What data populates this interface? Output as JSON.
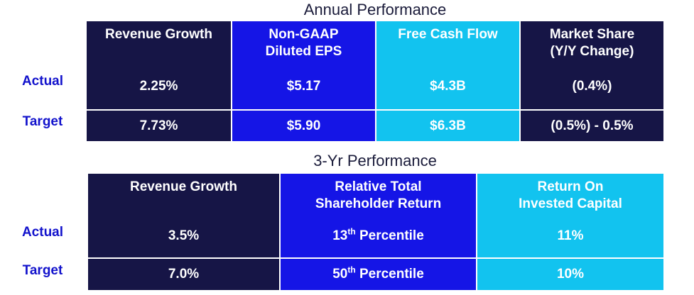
{
  "annual": {
    "title": "Annual Performance",
    "row_labels": {
      "actual": "Actual",
      "target": "Target"
    },
    "columns": [
      {
        "header": "Revenue Growth",
        "actual": "2.25%",
        "target": "7.73%",
        "color": "#161546"
      },
      {
        "header": "Non-GAAP\nDiluted EPS",
        "actual": "$5.17",
        "target": "$5.90",
        "color": "#1515e6"
      },
      {
        "header": "Free Cash Flow",
        "actual": "$4.3B",
        "target": "$6.3B",
        "color": "#12c3ef"
      },
      {
        "header": "Market Share\n(Y/Y Change)",
        "actual": "(0.4%)",
        "target": "(0.5%) - 0.5%",
        "color": "#161546"
      }
    ]
  },
  "three_year": {
    "title": "3-Yr Performance",
    "row_labels": {
      "actual": "Actual",
      "target": "Target"
    },
    "columns": [
      {
        "header": "Revenue Growth",
        "actual": "3.5%",
        "target": "7.0%",
        "color": "#161546"
      },
      {
        "header": "Relative Total\nShareholder Return",
        "actual": {
          "number": "13",
          "suffix": "th",
          "text": " Percentile"
        },
        "target": {
          "number": "50",
          "suffix": "th",
          "text": " Percentile"
        },
        "color": "#1515e6"
      },
      {
        "header": "Return On\nInvested Capital",
        "actual": "11%",
        "target": "10%",
        "color": "#12c3ef"
      }
    ]
  }
}
